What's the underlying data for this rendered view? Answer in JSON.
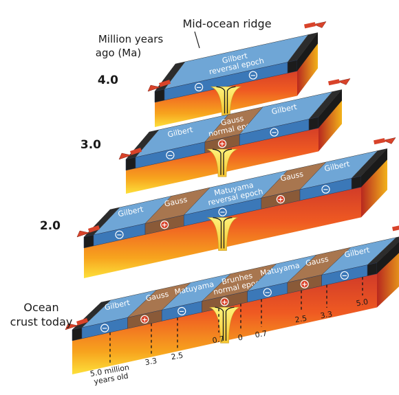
{
  "title": "Mid-ocean ridge",
  "axis_label_top": "Million  years",
  "axis_label_bottom": "ago (Ma)",
  "bottom_label_line1": "Ocean",
  "bottom_label_line2": "crust today",
  "colors": {
    "reversed": "#6fa6d6",
    "normal": "#a8764f",
    "edge": "#2c2c2c",
    "arrow": "#d8432a"
  },
  "slabs": [
    {
      "age_label": "4.0",
      "stripes": [
        {
          "name": "Gilbert",
          "polarity": "reversed",
          "label": "Gilbert\nreversal epoch"
        }
      ]
    },
    {
      "age_label": "3.0",
      "stripes": [
        {
          "name": "Gilbert",
          "polarity": "reversed",
          "label": "Gilbert"
        },
        {
          "name": "Gauss",
          "polarity": "normal",
          "label": "Gauss\nnormal epoch"
        },
        {
          "name": "Gilbert",
          "polarity": "reversed",
          "label": "Gilbert"
        }
      ]
    },
    {
      "age_label": "2.0",
      "stripes": [
        {
          "name": "Gilbert",
          "polarity": "reversed",
          "label": "Gilbert"
        },
        {
          "name": "Gauss",
          "polarity": "normal",
          "label": "Gauss"
        },
        {
          "name": "Matuyama",
          "polarity": "reversed",
          "label": "Matuyama\nreversal epoch"
        },
        {
          "name": "Gauss",
          "polarity": "normal",
          "label": "Gauss"
        },
        {
          "name": "Gilbert",
          "polarity": "reversed",
          "label": "Gilbert"
        }
      ]
    },
    {
      "age_label": "",
      "stripes": [
        {
          "name": "Gilbert",
          "polarity": "reversed",
          "label": "Gilbert"
        },
        {
          "name": "Gauss",
          "polarity": "normal",
          "label": "Gauss"
        },
        {
          "name": "Matuyama",
          "polarity": "reversed",
          "label": "Matuyama"
        },
        {
          "name": "Brunhes",
          "polarity": "normal",
          "label": "Brunhes\nnormal epoch"
        },
        {
          "name": "Matuyama",
          "polarity": "reversed",
          "label": "Matuyama"
        },
        {
          "name": "Gauss",
          "polarity": "normal",
          "label": "Gauss"
        },
        {
          "name": "Gilbert",
          "polarity": "reversed",
          "label": "Gilbert"
        }
      ]
    }
  ],
  "age_ticks_left": [
    "5.0 million\nyears old",
    "3.3",
    "2.5",
    "0.7"
  ],
  "age_tick_center": "0",
  "age_ticks_right": [
    "0.7",
    "2.5",
    "3.3",
    "5.0"
  ],
  "symbols": {
    "normal": "+",
    "reversed": "−"
  }
}
